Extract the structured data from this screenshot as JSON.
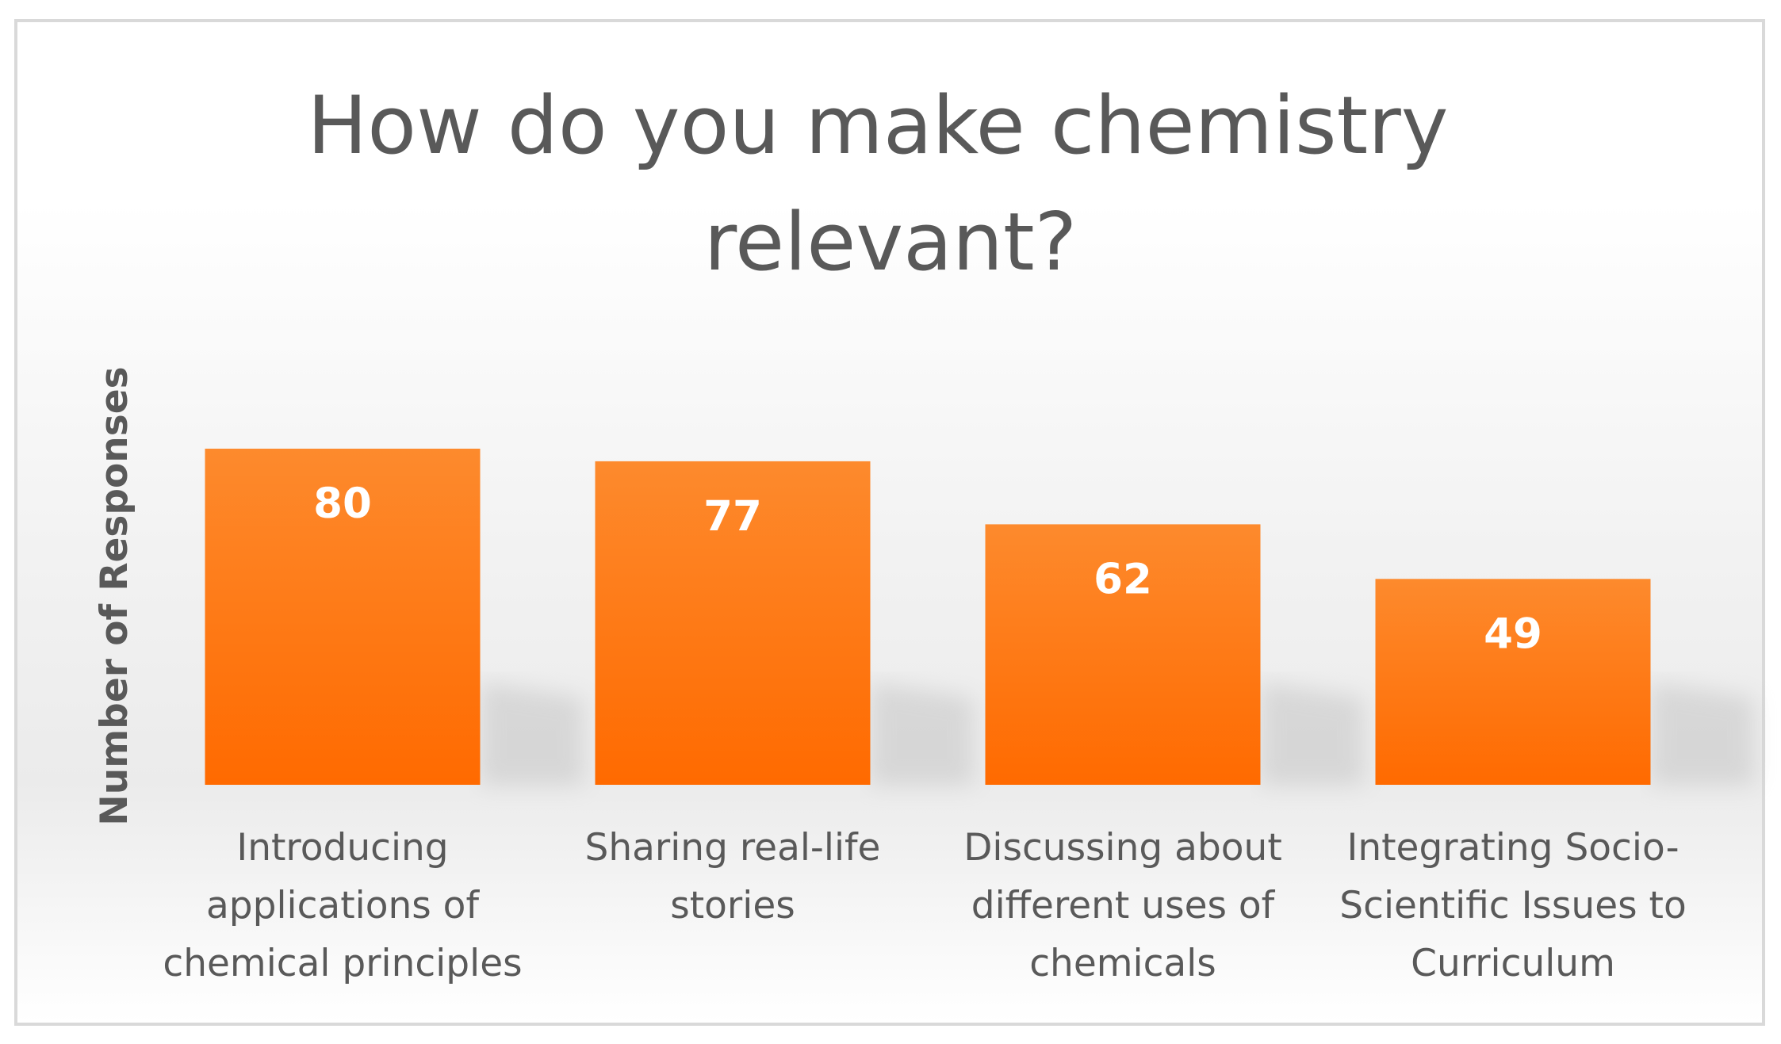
{
  "chart_data": {
    "type": "bar",
    "title": "How do you make chemistry relevant?",
    "title_lines": [
      "How do you make chemistry",
      "relevant?"
    ],
    "xlabel": "",
    "ylabel": "Number of Responses",
    "categories": [
      "Introducing applications of chemical principles",
      "Sharing real-life stories",
      "Discussing about different uses of chemicals",
      "Integrating Socio-Scientific Issues to Curriculum"
    ],
    "category_lines": [
      [
        "Introducing",
        "applications of",
        "chemical principles"
      ],
      [
        "Sharing real-life",
        "stories"
      ],
      [
        "Discussing about",
        "different uses of",
        "chemicals"
      ],
      [
        "Integrating Socio-",
        "Scientific Issues to",
        "Curriculum"
      ]
    ],
    "values": [
      80,
      77,
      62,
      49
    ],
    "data_labels": [
      "80",
      "77",
      "62",
      "49"
    ],
    "ylim": [
      0,
      80
    ],
    "grid": false,
    "legend": "none",
    "colors": {
      "bar_top": "#fd8a2d",
      "bar_bottom": "#ff6a00",
      "text": "#595959",
      "label": "#ffffff"
    }
  }
}
